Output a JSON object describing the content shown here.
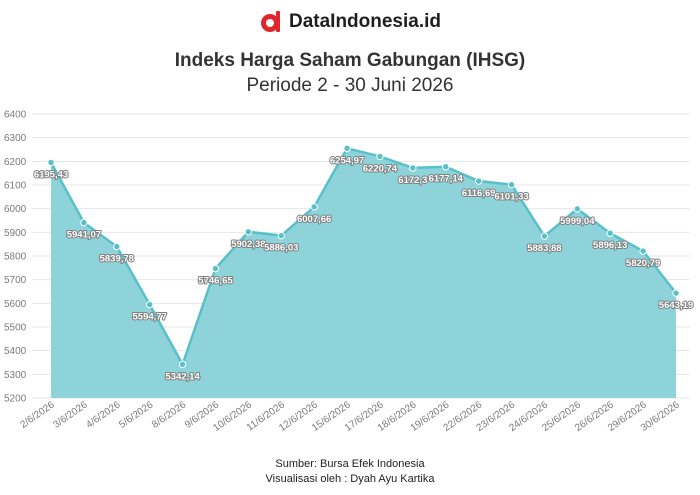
{
  "brand": {
    "name": "DataIndonesia.id",
    "logo_icon": "dataindonesia-logo-icon",
    "logo_color": "#e0262b"
  },
  "title": "Indeks Harga Saham Gabungan (IHSG)",
  "subtitle": "Periode 2 - 30 Juni 2026",
  "footer": {
    "source": "Sumber: Bursa Efek Indonesia",
    "visualized_by": "Visualisasi oleh : Dyah Ayu Kartika"
  },
  "colors": {
    "line": "#58c0c9",
    "area": "#8dd3d9",
    "grid": "#e6e6e6"
  },
  "chart_data": {
    "type": "area",
    "title": "Indeks Harga Saham Gabungan (IHSG)",
    "subtitle": "Periode 2 - 30 Juni 2026",
    "xlabel": "",
    "ylabel": "",
    "ylim": [
      5200,
      6400
    ],
    "yticks": [
      "5200",
      "5300",
      "5400",
      "5500",
      "5600",
      "5700",
      "5800",
      "5900",
      "6000",
      "6100",
      "6200",
      "6300",
      "6400"
    ],
    "grid": true,
    "legend": "none",
    "categories": [
      "2/6/2026",
      "3/6/2026",
      "4/6/2026",
      "5/6/2026",
      "8/6/2026",
      "9/6/2026",
      "10/6/2026",
      "11/6/2026",
      "12/6/2026",
      "15/6/2026",
      "17/6/2026",
      "18/6/2026",
      "19/6/2026",
      "22/6/2026",
      "23/6/2026",
      "24/6/2026",
      "25/6/2026",
      "26/6/2026",
      "29/6/2026",
      "30/6/2026"
    ],
    "values": [
      6195.43,
      5941.07,
      5839.78,
      5594.77,
      5342.14,
      5746.65,
      5902.38,
      5886.03,
      6007.66,
      6254.97,
      6220.74,
      6172.3,
      6177.14,
      6116.69,
      6101.33,
      5883.88,
      5999.04,
      5896.13,
      5820.79,
      5643.19
    ],
    "data_labels": [
      "6195,43",
      "5941,07",
      "5839,78",
      "5594,77",
      "5342,14",
      "5746,65",
      "5902,38",
      "5886,03",
      "6007,66",
      "6254,97",
      "6220,74",
      "6172,3",
      "6177,14",
      "6116,69",
      "6101,33",
      "5883,88",
      "5999,04",
      "5896,13",
      "5820,79",
      "5643,19"
    ]
  }
}
